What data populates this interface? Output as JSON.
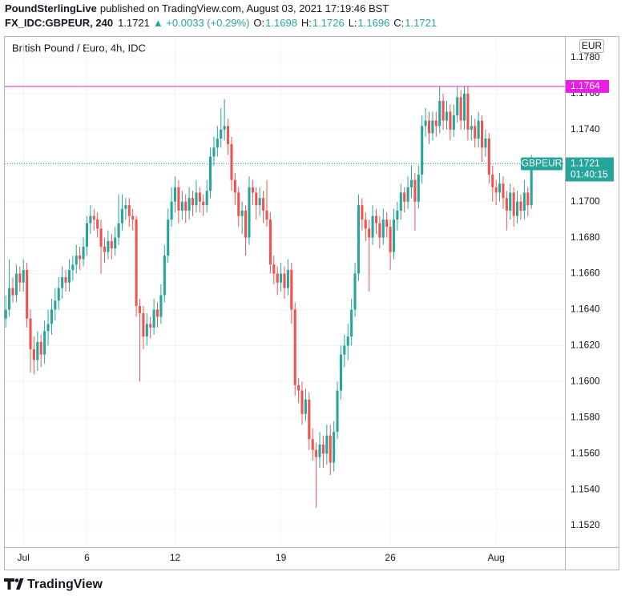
{
  "header": {
    "publisher": "PoundSterlingLive",
    "published": "published on TradingView.com, August 03, 2021 17:19:46 BST",
    "symbol": "FX_IDC:GBPEUR, 240",
    "last": "1.1721",
    "change": "▲ +0.0033 (+0.29%)",
    "ohlc": [
      "O:",
      "1.1698",
      "H:",
      "1.1726",
      "L:",
      "1.1696",
      "C:",
      "1.1721"
    ]
  },
  "footer": {
    "logo": "TradingView"
  },
  "chart_data": {
    "type": "candlestick",
    "title": "British Pound / Euro, 4h, IDC",
    "currency": "EUR",
    "up_color": "#26a69a",
    "down_color": "#ef5350",
    "grid": true,
    "xlim": [
      -0.5,
      158.5
    ],
    "ylim": [
      1.1508,
      1.1792
    ],
    "xticks": [
      {
        "value": 5,
        "label": "Jul"
      },
      {
        "value": 23,
        "label": "6"
      },
      {
        "value": 48,
        "label": "12"
      },
      {
        "value": 78,
        "label": "19"
      },
      {
        "value": 109,
        "label": "26"
      },
      {
        "value": 139,
        "label": "Aug"
      }
    ],
    "yticks": [
      {
        "value": 1.152,
        "label": "1.1520"
      },
      {
        "value": 1.154,
        "label": "1.1540"
      },
      {
        "value": 1.156,
        "label": "1.1560"
      },
      {
        "value": 1.158,
        "label": "1.1580"
      },
      {
        "value": 1.16,
        "label": "1.1600"
      },
      {
        "value": 1.162,
        "label": "1.1620"
      },
      {
        "value": 1.164,
        "label": "1.1640"
      },
      {
        "value": 1.166,
        "label": "1.1660"
      },
      {
        "value": 1.168,
        "label": "1.1680"
      },
      {
        "value": 1.17,
        "label": "1.1700"
      },
      {
        "value": 1.172,
        "label": "1.1720"
      },
      {
        "value": 1.174,
        "label": "1.1740"
      },
      {
        "value": 1.176,
        "label": "1.1760"
      },
      {
        "value": 1.178,
        "label": "1.1780"
      }
    ],
    "horizontal_line": {
      "value": 1.1764,
      "color": "#e91ee3"
    },
    "price_line": {
      "value": 1.1721,
      "symbol": "GBPEUR",
      "countdown": "01:40:15",
      "color": "#26a69a"
    },
    "candles": [
      [
        1.1635,
        1.1648,
        1.163,
        1.164
      ],
      [
        1.164,
        1.1668,
        1.1636,
        1.1652
      ],
      [
        1.1652,
        1.1658,
        1.1644,
        1.1648
      ],
      [
        1.1648,
        1.1665,
        1.1644,
        1.166
      ],
      [
        1.166,
        1.1664,
        1.165,
        1.1655
      ],
      [
        1.1655,
        1.1668,
        1.165,
        1.1662
      ],
      [
        1.1662,
        1.1666,
        1.163,
        1.1635
      ],
      [
        1.1635,
        1.164,
        1.1605,
        1.1618
      ],
      [
        1.1618,
        1.1625,
        1.1604,
        1.1612
      ],
      [
        1.1612,
        1.1628,
        1.1606,
        1.1622
      ],
      [
        1.1622,
        1.1626,
        1.1608,
        1.1615
      ],
      [
        1.1615,
        1.1634,
        1.161,
        1.1628
      ],
      [
        1.1628,
        1.164,
        1.162,
        1.1632
      ],
      [
        1.1632,
        1.1646,
        1.1626,
        1.164
      ],
      [
        1.164,
        1.1652,
        1.1634,
        1.1645
      ],
      [
        1.1645,
        1.1658,
        1.164,
        1.1652
      ],
      [
        1.1652,
        1.1664,
        1.1646,
        1.1658
      ],
      [
        1.1658,
        1.1662,
        1.165,
        1.1655
      ],
      [
        1.1655,
        1.1668,
        1.165,
        1.1662
      ],
      [
        1.1662,
        1.167,
        1.1656,
        1.1665
      ],
      [
        1.1665,
        1.1676,
        1.166,
        1.167
      ],
      [
        1.167,
        1.1675,
        1.1662,
        1.1668
      ],
      [
        1.1668,
        1.168,
        1.1664,
        1.1675
      ],
      [
        1.1675,
        1.1692,
        1.167,
        1.1688
      ],
      [
        1.1688,
        1.1698,
        1.1682,
        1.1692
      ],
      [
        1.1692,
        1.1696,
        1.1684,
        1.169
      ],
      [
        1.169,
        1.1694,
        1.168,
        1.1685
      ],
      [
        1.1685,
        1.169,
        1.166,
        1.1675
      ],
      [
        1.1675,
        1.168,
        1.1666,
        1.1672
      ],
      [
        1.1672,
        1.1684,
        1.1668,
        1.1678
      ],
      [
        1.1678,
        1.1682,
        1.1668,
        1.1674
      ],
      [
        1.1674,
        1.1686,
        1.167,
        1.168
      ],
      [
        1.168,
        1.1704,
        1.1676,
        1.1688
      ],
      [
        1.1688,
        1.1704,
        1.1684,
        1.1696
      ],
      [
        1.1696,
        1.1702,
        1.169,
        1.1698
      ],
      [
        1.1698,
        1.1702,
        1.1686,
        1.1692
      ],
      [
        1.1692,
        1.1696,
        1.1684,
        1.169
      ],
      [
        1.169,
        1.1692,
        1.1636,
        1.1642
      ],
      [
        1.1642,
        1.1646,
        1.16,
        1.1638
      ],
      [
        1.1638,
        1.1642,
        1.1618,
        1.1625
      ],
      [
        1.1625,
        1.1638,
        1.162,
        1.1632
      ],
      [
        1.1632,
        1.1636,
        1.1624,
        1.163
      ],
      [
        1.163,
        1.1646,
        1.1626,
        1.164
      ],
      [
        1.164,
        1.1644,
        1.163,
        1.1636
      ],
      [
        1.1636,
        1.1654,
        1.1632,
        1.1648
      ],
      [
        1.1648,
        1.1676,
        1.1644,
        1.167
      ],
      [
        1.167,
        1.1696,
        1.1666,
        1.169
      ],
      [
        1.169,
        1.1708,
        1.1686,
        1.17
      ],
      [
        1.17,
        1.1714,
        1.1694,
        1.1708
      ],
      [
        1.1708,
        1.1712,
        1.1688,
        1.1695
      ],
      [
        1.1695,
        1.1706,
        1.169,
        1.17
      ],
      [
        1.17,
        1.1704,
        1.1688,
        1.1695
      ],
      [
        1.1695,
        1.1708,
        1.169,
        1.1702
      ],
      [
        1.1702,
        1.1706,
        1.1692,
        1.1698
      ],
      [
        1.1698,
        1.1712,
        1.1694,
        1.1705
      ],
      [
        1.1705,
        1.1708,
        1.1694,
        1.17
      ],
      [
        1.17,
        1.1704,
        1.1692,
        1.1698
      ],
      [
        1.1698,
        1.1712,
        1.1694,
        1.1706
      ],
      [
        1.1706,
        1.173,
        1.1702,
        1.1725
      ],
      [
        1.1725,
        1.1736,
        1.172,
        1.173
      ],
      [
        1.173,
        1.1742,
        1.1725,
        1.1735
      ],
      [
        1.1735,
        1.1752,
        1.173,
        1.174
      ],
      [
        1.174,
        1.1757,
        1.1734,
        1.1742
      ],
      [
        1.1742,
        1.1746,
        1.1726,
        1.1732
      ],
      [
        1.1732,
        1.1736,
        1.1706,
        1.1712
      ],
      [
        1.1712,
        1.1716,
        1.1698,
        1.1705
      ],
      [
        1.1705,
        1.1708,
        1.1686,
        1.1692
      ],
      [
        1.1692,
        1.17,
        1.1682,
        1.1695
      ],
      [
        1.1695,
        1.1698,
        1.167,
        1.168
      ],
      [
        1.168,
        1.1714,
        1.1676,
        1.1708
      ],
      [
        1.1708,
        1.1712,
        1.1698,
        1.1705
      ],
      [
        1.1705,
        1.1708,
        1.169,
        1.1698
      ],
      [
        1.1698,
        1.1708,
        1.1692,
        1.1702
      ],
      [
        1.1702,
        1.1706,
        1.1688,
        1.1695
      ],
      [
        1.1695,
        1.1712,
        1.1686,
        1.169
      ],
      [
        1.169,
        1.1694,
        1.166,
        1.1665
      ],
      [
        1.1665,
        1.167,
        1.1654,
        1.166
      ],
      [
        1.166,
        1.1664,
        1.1648,
        1.1655
      ],
      [
        1.1655,
        1.1666,
        1.165,
        1.166
      ],
      [
        1.166,
        1.1664,
        1.1646,
        1.1652
      ],
      [
        1.1652,
        1.1668,
        1.1648,
        1.1662
      ],
      [
        1.1662,
        1.1666,
        1.1632,
        1.164
      ],
      [
        1.164,
        1.1644,
        1.1592,
        1.1598
      ],
      [
        1.1598,
        1.1602,
        1.1588,
        1.1595
      ],
      [
        1.1595,
        1.16,
        1.1576,
        1.1582
      ],
      [
        1.1582,
        1.1596,
        1.1578,
        1.159
      ],
      [
        1.159,
        1.1594,
        1.1562,
        1.1568
      ],
      [
        1.1568,
        1.1574,
        1.1556,
        1.1562
      ],
      [
        1.1562,
        1.1566,
        1.153,
        1.1558
      ],
      [
        1.1558,
        1.1572,
        1.1552,
        1.1565
      ],
      [
        1.1565,
        1.157,
        1.1552,
        1.156
      ],
      [
        1.156,
        1.1576,
        1.1554,
        1.157
      ],
      [
        1.157,
        1.1576,
        1.1548,
        1.1555
      ],
      [
        1.1555,
        1.1578,
        1.155,
        1.1572
      ],
      [
        1.1572,
        1.16,
        1.1568,
        1.1595
      ],
      [
        1.1595,
        1.162,
        1.159,
        1.1615
      ],
      [
        1.1615,
        1.1626,
        1.1608,
        1.162
      ],
      [
        1.162,
        1.1632,
        1.1612,
        1.1625
      ],
      [
        1.1625,
        1.1646,
        1.162,
        1.164
      ],
      [
        1.164,
        1.1666,
        1.1636,
        1.166
      ],
      [
        1.166,
        1.1704,
        1.1656,
        1.1698
      ],
      [
        1.1698,
        1.1702,
        1.1684,
        1.169
      ],
      [
        1.169,
        1.1694,
        1.1678,
        1.1685
      ],
      [
        1.1685,
        1.169,
        1.165,
        1.168
      ],
      [
        1.168,
        1.1698,
        1.1676,
        1.1692
      ],
      [
        1.1692,
        1.1696,
        1.1682,
        1.1688
      ],
      [
        1.1688,
        1.1692,
        1.1674,
        1.168
      ],
      [
        1.168,
        1.1696,
        1.1676,
        1.169
      ],
      [
        1.169,
        1.1694,
        1.168,
        1.1686
      ],
      [
        1.1686,
        1.169,
        1.1662,
        1.1672
      ],
      [
        1.1672,
        1.1696,
        1.1668,
        1.169
      ],
      [
        1.169,
        1.17,
        1.1684,
        1.1695
      ],
      [
        1.1695,
        1.171,
        1.169,
        1.1705
      ],
      [
        1.1705,
        1.1708,
        1.1694,
        1.17
      ],
      [
        1.17,
        1.1714,
        1.1696,
        1.1708
      ],
      [
        1.1708,
        1.172,
        1.1702,
        1.1712
      ],
      [
        1.1712,
        1.1716,
        1.1684,
        1.17
      ],
      [
        1.17,
        1.172,
        1.1696,
        1.1715
      ],
      [
        1.1715,
        1.1748,
        1.171,
        1.1742
      ],
      [
        1.1742,
        1.1752,
        1.1736,
        1.1745
      ],
      [
        1.1745,
        1.175,
        1.1732,
        1.1738
      ],
      [
        1.1738,
        1.175,
        1.1734,
        1.1745
      ],
      [
        1.1745,
        1.175,
        1.1736,
        1.1742
      ],
      [
        1.1742,
        1.1764,
        1.1738,
        1.1756
      ],
      [
        1.1756,
        1.176,
        1.174,
        1.1745
      ],
      [
        1.1745,
        1.1756,
        1.174,
        1.175
      ],
      [
        1.175,
        1.1754,
        1.1734,
        1.174
      ],
      [
        1.174,
        1.1754,
        1.1736,
        1.1748
      ],
      [
        1.1748,
        1.1764,
        1.1744,
        1.1758
      ],
      [
        1.1758,
        1.1762,
        1.174,
        1.1745
      ],
      [
        1.1745,
        1.1764,
        1.174,
        1.176
      ],
      [
        1.176,
        1.1764,
        1.1734,
        1.174
      ],
      [
        1.174,
        1.1748,
        1.1734,
        1.1742
      ],
      [
        1.1742,
        1.1746,
        1.173,
        1.1735
      ],
      [
        1.1735,
        1.175,
        1.173,
        1.1745
      ],
      [
        1.1745,
        1.1748,
        1.1722,
        1.173
      ],
      [
        1.173,
        1.174,
        1.1725,
        1.1735
      ],
      [
        1.1735,
        1.1738,
        1.171,
        1.1715
      ],
      [
        1.1715,
        1.172,
        1.17,
        1.1708
      ],
      [
        1.1708,
        1.1712,
        1.1698,
        1.1705
      ],
      [
        1.1705,
        1.1716,
        1.17,
        1.171
      ],
      [
        1.171,
        1.1714,
        1.1696,
        1.1702
      ],
      [
        1.1702,
        1.1706,
        1.1684,
        1.1695
      ],
      [
        1.1695,
        1.171,
        1.169,
        1.1705
      ],
      [
        1.1705,
        1.1708,
        1.1686,
        1.1692
      ],
      [
        1.1692,
        1.1706,
        1.1688,
        1.17
      ],
      [
        1.17,
        1.1704,
        1.169,
        1.1695
      ],
      [
        1.1695,
        1.1712,
        1.169,
        1.1705
      ],
      [
        1.1705,
        1.1708,
        1.1692,
        1.1698
      ],
      [
        1.1698,
        1.1726,
        1.1696,
        1.1721
      ]
    ]
  }
}
